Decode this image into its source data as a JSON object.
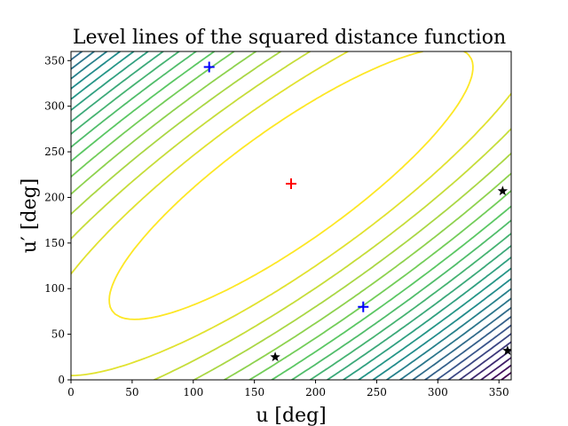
{
  "chart_data": {
    "type": "contour",
    "title": "Level lines of the squared distance function",
    "xlabel": "u [deg]",
    "ylabel": "u′ [deg]",
    "xlim": [
      0,
      360
    ],
    "ylim": [
      0,
      360
    ],
    "xticks": [
      0,
      50,
      100,
      150,
      200,
      250,
      300,
      350
    ],
    "yticks": [
      0,
      50,
      100,
      150,
      200,
      250,
      300,
      350
    ],
    "grid": false,
    "colormap": [
      "#440154",
      "#3b528b",
      "#21918c",
      "#5ec962",
      "#fde725"
    ],
    "maximum_marker": {
      "x": 180,
      "y": 215,
      "color": "#ff0000",
      "symbol": "+"
    },
    "plus_markers": [
      {
        "x": 113,
        "y": 343,
        "color": "#0000ff",
        "symbol": "+"
      },
      {
        "x": 239,
        "y": 80,
        "color": "#0000ff",
        "symbol": "+"
      }
    ],
    "star_markers": [
      {
        "x": 167,
        "y": 25,
        "color": "#000000",
        "symbol": "*"
      },
      {
        "x": 353,
        "y": 207,
        "color": "#000000",
        "symbol": "*"
      },
      {
        "x": 357,
        "y": 32,
        "color": "#000000",
        "symbol": "*"
      }
    ]
  }
}
